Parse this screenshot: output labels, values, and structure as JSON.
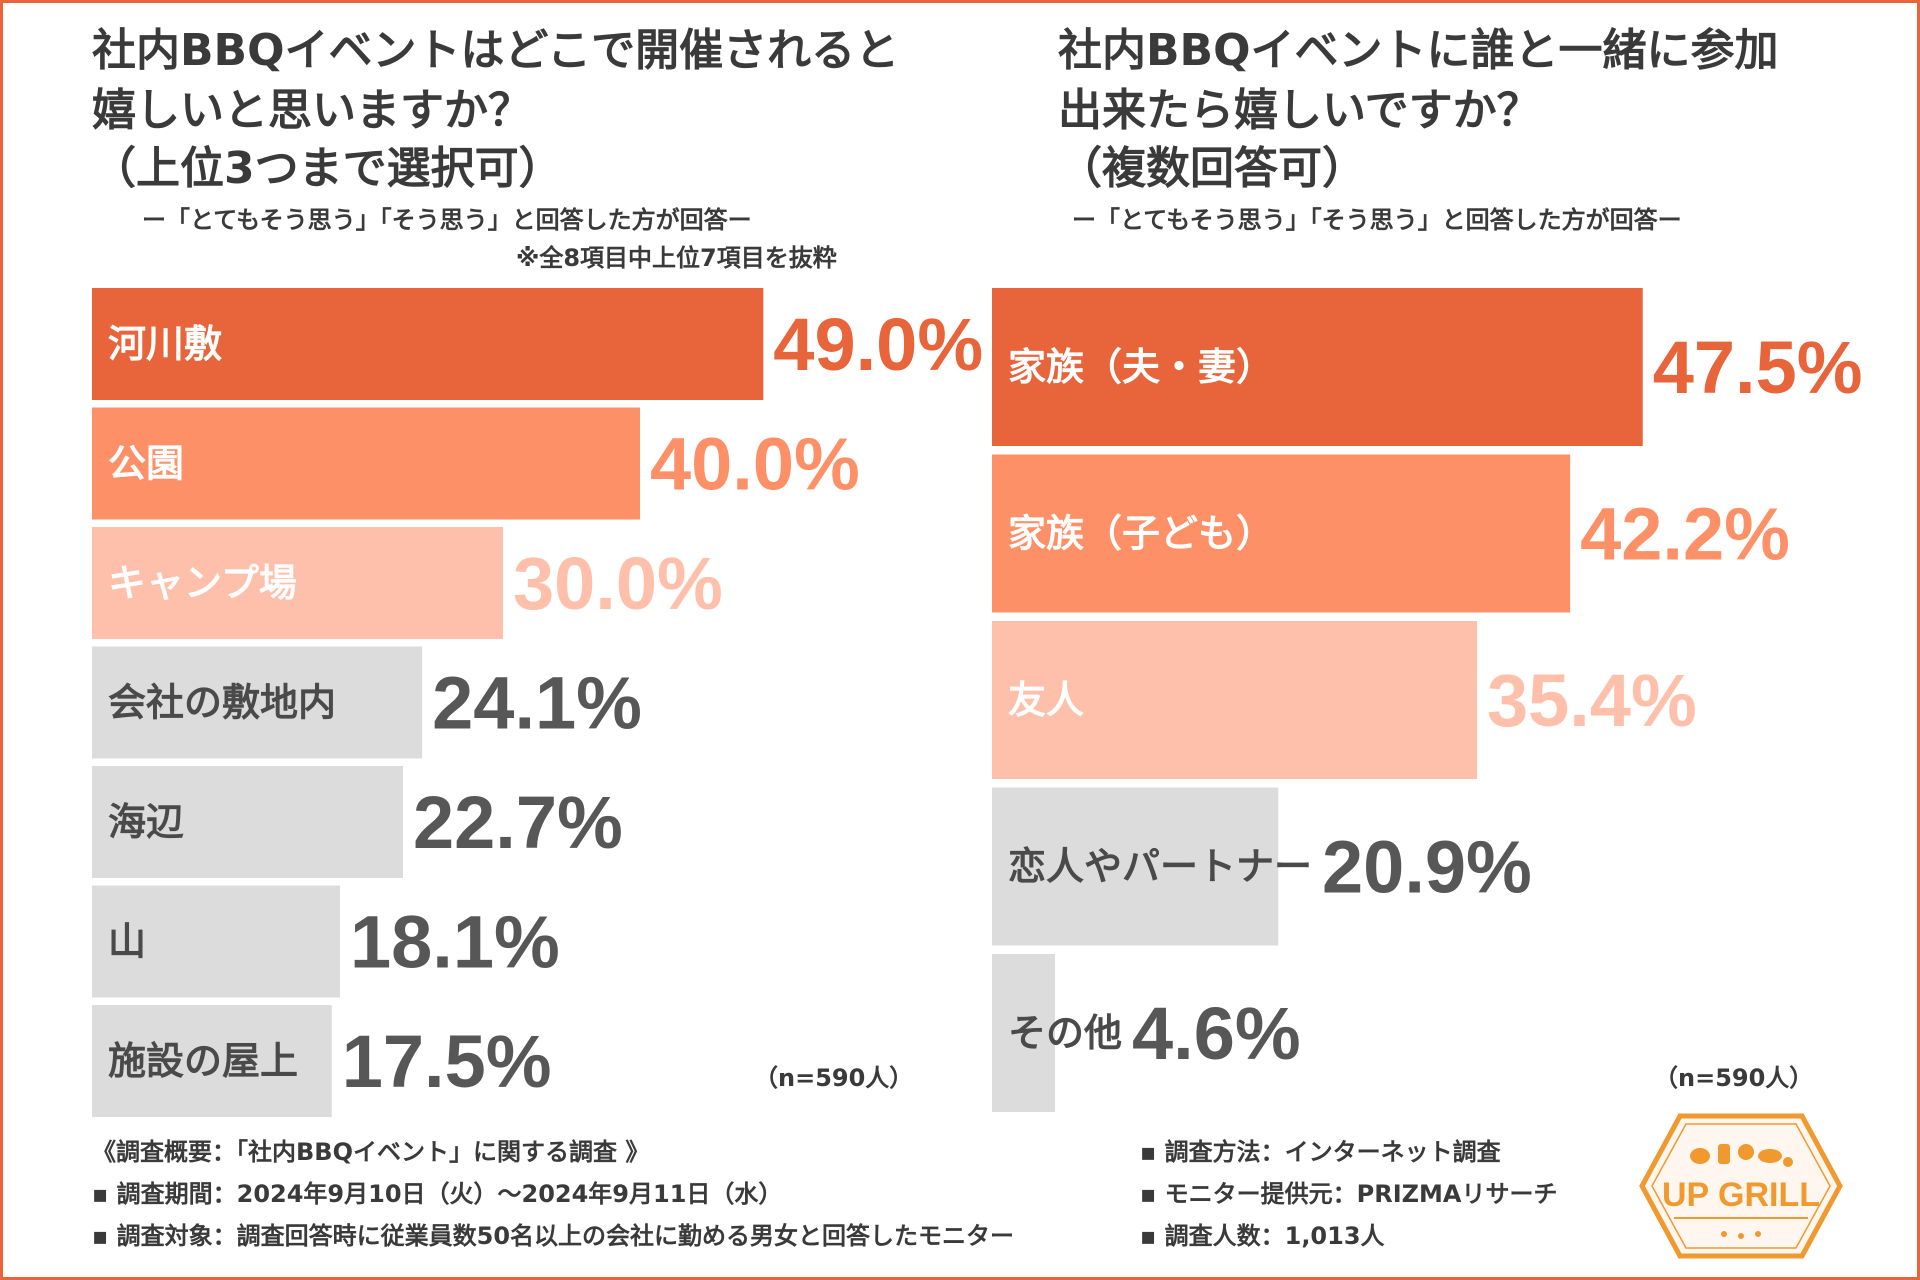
{
  "colors": {
    "accent": "#e8643a",
    "bar_levels": [
      "#e8643a",
      "#fe9068",
      "#fec0aa",
      "#dcdcdc"
    ],
    "label_levels": [
      "#e8643a",
      "#fe9068",
      "#fec0aa",
      "#575757"
    ],
    "text": "#3a3a3a"
  },
  "left": {
    "title_lines": [
      "社内BBQイベントはどこで開催されると",
      "嬉しいと思いますか？",
      "（上位3つまで選択可）"
    ],
    "subtitle": "ー「とてもそう思う」「そう思う」と回答した方が回答ー",
    "note": "※全8項目中上位7項目を抜粋",
    "sample": "（n=590人）"
  },
  "right": {
    "title_lines": [
      "社内BBQイベントに誰と一緒に参加",
      "出来たら嬉しいですか？",
      "（複数回答可）"
    ],
    "subtitle": "ー「とてもそう思う」「そう思う」と回答した方が回答ー",
    "sample": "（n=590人）"
  },
  "chart_data": [
    {
      "type": "bar",
      "orientation": "horizontal",
      "title": "社内BBQイベントはどこで開催されると嬉しいと思いますか？（上位3つまで選択可）",
      "categories": [
        "河川敷",
        "公園",
        "キャンプ場",
        "会社の敷地内",
        "海辺",
        "山",
        "施設の屋上"
      ],
      "values": [
        49.0,
        40.0,
        30.0,
        24.1,
        22.7,
        18.1,
        17.5
      ],
      "labels": [
        "49.0%",
        "40.0%",
        "30.0%",
        "24.1%",
        "22.7%",
        "18.1%",
        "17.5%"
      ],
      "color_levels": [
        0,
        1,
        2,
        3,
        3,
        3,
        3
      ],
      "unit": "%"
    },
    {
      "type": "bar",
      "orientation": "horizontal",
      "title": "社内BBQイベントに誰と一緒に参加出来たら嬉しいですか？（複数回答可）",
      "categories": [
        "家族（夫・妻）",
        "家族（子ども）",
        "友人",
        "恋人やパートナー",
        "その他"
      ],
      "values": [
        47.5,
        42.2,
        35.4,
        20.9,
        4.6
      ],
      "labels": [
        "47.5%",
        "42.2%",
        "35.4%",
        "20.9%",
        "4.6%"
      ],
      "color_levels": [
        0,
        1,
        2,
        3,
        3
      ],
      "unit": "%"
    }
  ],
  "footer": {
    "overview": "《調査概要：「社内BBQイベント」に関する調査 》",
    "period": "▪ 調査期間：2024年9月10日（火）〜2024年9月11日（水）",
    "target": "▪ 調査対象：調査回答時に従業員数50名以上の会社に勤める男女と回答したモニター",
    "method": "▪ 調査方法：インターネット調査",
    "provider": "▪ モニター提供元：PRIZMAリサーチ",
    "count": "▪ 調査人数：1,013人"
  },
  "logo": {
    "text": "UP GRILL"
  }
}
